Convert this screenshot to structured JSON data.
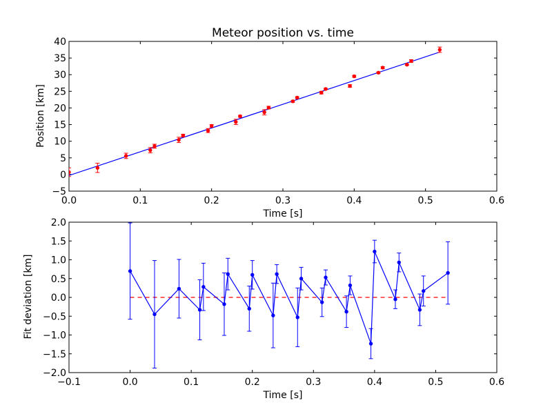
{
  "chart_data": [
    {
      "type": "scatter",
      "title": "Meteor position vs. time",
      "xlabel": "Time [s]",
      "ylabel": "Position [km]",
      "xlim": [
        0.0,
        0.6
      ],
      "ylim": [
        -5,
        40
      ],
      "xticks": [
        "0.0",
        "0.1",
        "0.2",
        "0.3",
        "0.4",
        "0.5",
        "0.6"
      ],
      "yticks": [
        "−5",
        "0",
        "5",
        "10",
        "15",
        "20",
        "25",
        "30",
        "35",
        "40"
      ],
      "xtick_values": [
        0.0,
        0.1,
        0.2,
        0.3,
        0.4,
        0.5,
        0.6
      ],
      "ytick_values": [
        -5,
        0,
        5,
        10,
        15,
        20,
        25,
        30,
        35,
        40
      ],
      "grid": false,
      "series": [
        {
          "kind": "errorbar-points",
          "color": "#ff0000",
          "x": [
            0.0,
            0.04,
            0.08,
            0.114,
            0.12,
            0.154,
            0.16,
            0.195,
            0.2,
            0.234,
            0.24,
            0.274,
            0.28,
            0.314,
            0.32,
            0.354,
            0.36,
            0.394,
            0.4,
            0.434,
            0.44,
            0.474,
            0.48,
            0.52
          ],
          "y": [
            0.7,
            2.0,
            5.6,
            7.3,
            8.5,
            10.4,
            11.7,
            13.2,
            14.6,
            15.8,
            17.5,
            18.7,
            20.1,
            22.0,
            23.1,
            24.6,
            25.7,
            26.6,
            29.5,
            30.6,
            32.1,
            33.0,
            34.1,
            37.5
          ],
          "yerr": [
            1.3,
            1.4,
            0.8,
            0.8,
            0.6,
            0.8,
            0.4,
            0.6,
            0.4,
            0.8,
            0.3,
            0.8,
            0.4,
            0.3,
            0.3,
            0.4,
            0.2,
            0.4,
            0.3,
            0.2,
            0.3,
            0.2,
            0.4,
            0.8
          ]
        },
        {
          "kind": "fit-line",
          "color": "#0000ff",
          "x": [
            0.0,
            0.52
          ],
          "y": [
            -0.3,
            36.8
          ]
        }
      ]
    },
    {
      "type": "line",
      "xlabel": "Time [s]",
      "ylabel": "Fit deviation [km]",
      "xlim": [
        -0.1,
        0.6
      ],
      "ylim": [
        -2.0,
        2.0
      ],
      "xticks": [
        "−0.1",
        "0.0",
        "0.1",
        "0.2",
        "0.3",
        "0.4",
        "0.5",
        "0.6"
      ],
      "yticks": [
        "−2.0",
        "−1.5",
        "−1.0",
        "−0.5",
        "0.0",
        "0.5",
        "1.0",
        "1.5",
        "2.0"
      ],
      "xtick_values": [
        -0.1,
        0.0,
        0.1,
        0.2,
        0.3,
        0.4,
        0.5,
        0.6
      ],
      "ytick_values": [
        -2.0,
        -1.5,
        -1.0,
        -0.5,
        0.0,
        0.5,
        1.0,
        1.5,
        2.0
      ],
      "grid": false,
      "series": [
        {
          "kind": "errorbar-line",
          "color": "#0000ff",
          "x": [
            0.0,
            0.04,
            0.08,
            0.114,
            0.12,
            0.154,
            0.16,
            0.195,
            0.2,
            0.234,
            0.24,
            0.274,
            0.28,
            0.314,
            0.32,
            0.354,
            0.36,
            0.394,
            0.4,
            0.434,
            0.44,
            0.474,
            0.48,
            0.52
          ],
          "y": [
            0.7,
            -0.45,
            0.23,
            -0.33,
            0.28,
            -0.18,
            0.62,
            -0.3,
            0.6,
            -0.48,
            0.62,
            -0.53,
            0.5,
            -0.13,
            0.53,
            -0.38,
            0.32,
            -1.23,
            1.22,
            -0.05,
            0.93,
            -0.33,
            0.17,
            0.65
          ],
          "yerr": [
            1.28,
            1.43,
            0.78,
            0.8,
            0.63,
            0.83,
            0.42,
            0.6,
            0.38,
            0.86,
            0.25,
            0.78,
            0.3,
            0.38,
            0.2,
            0.42,
            0.25,
            0.4,
            0.3,
            0.25,
            0.25,
            0.42,
            0.4,
            0.83
          ]
        },
        {
          "kind": "zero-line",
          "color": "#ff0000",
          "dashed": true,
          "x": [
            0.0,
            0.52
          ],
          "y": [
            0.0,
            0.0
          ]
        }
      ]
    }
  ]
}
